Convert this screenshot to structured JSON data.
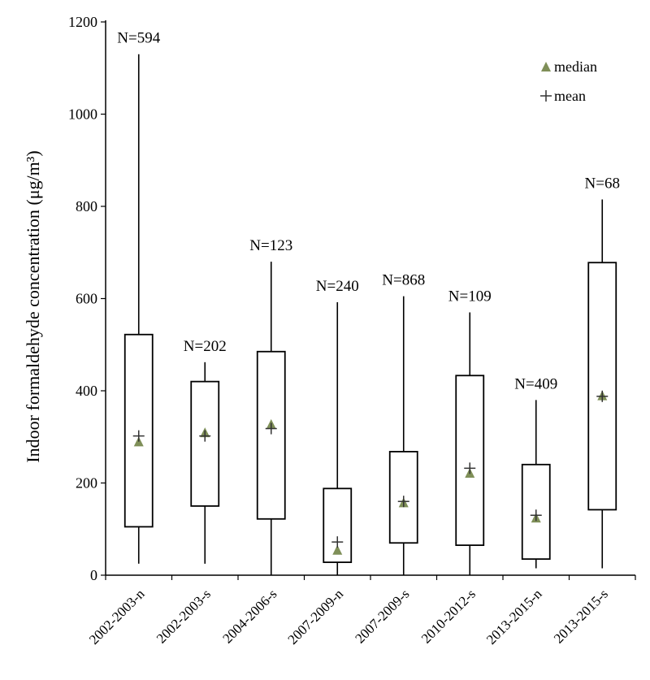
{
  "chart_data": {
    "type": "box",
    "ylabel": "Indoor formaldehyde concentration (μg/m³)",
    "ylim": [
      0,
      1200
    ],
    "yticks": [
      0,
      200,
      400,
      600,
      800,
      1000,
      1200
    ],
    "grid": false,
    "legend_position": "top-right",
    "legend": [
      {
        "label": "median",
        "marker": "triangle",
        "color": "#7f8f58"
      },
      {
        "label": "mean",
        "marker": "plus",
        "color": "#333333"
      }
    ],
    "categories": [
      "2002-2003-n",
      "2002-2003-s",
      "2004-2006-s",
      "2007-2009-n",
      "2007-2009-s",
      "2010-2012-s",
      "2013-2015-n",
      "2013-2015-s"
    ],
    "n_labels": [
      "N=594",
      "N=202",
      "N=123",
      "N=240",
      "N=868",
      "N=109",
      "N=409",
      "N=68"
    ],
    "boxes": [
      {
        "min": 25,
        "q1": 105,
        "median": 290,
        "mean": 302,
        "q3": 522,
        "max": 1130
      },
      {
        "min": 25,
        "q1": 150,
        "median": 310,
        "mean": 302,
        "q3": 420,
        "max": 462
      },
      {
        "min": 0,
        "q1": 122,
        "median": 328,
        "mean": 318,
        "q3": 485,
        "max": 680
      },
      {
        "min": 0,
        "q1": 28,
        "median": 55,
        "mean": 72,
        "q3": 188,
        "max": 592
      },
      {
        "min": 0,
        "q1": 70,
        "median": 158,
        "mean": 160,
        "q3": 268,
        "max": 605
      },
      {
        "min": 0,
        "q1": 65,
        "median": 222,
        "mean": 232,
        "q3": 433,
        "max": 570
      },
      {
        "min": 15,
        "q1": 35,
        "median": 125,
        "mean": 130,
        "q3": 240,
        "max": 380
      },
      {
        "min": 15,
        "q1": 142,
        "median": 390,
        "mean": 388,
        "q3": 678,
        "max": 815
      }
    ],
    "colors": {
      "median": "#7f8f58",
      "mean": "#333333",
      "box": "#000000"
    }
  }
}
